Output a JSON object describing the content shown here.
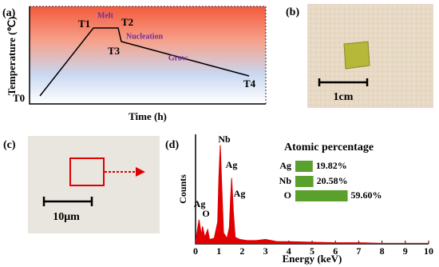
{
  "panel_a": {
    "label": "(a)",
    "x_label": "Time (h)",
    "y_label": "Temperature (℃)",
    "stages": [
      "T0",
      "T1",
      "T2",
      "T3",
      "T4"
    ],
    "phases": [
      "Melt",
      "Nucleation",
      "Grow"
    ]
  },
  "panel_b": {
    "label": "(b)",
    "scale_label": "1cm"
  },
  "panel_c": {
    "label": "(c)",
    "scale_label": "10μm"
  },
  "chart_data": [
    {
      "type": "line",
      "label": "(d)",
      "x_label": "Energy (keV)",
      "y_label": "Counts",
      "color": "#e00000",
      "xlim": [
        0,
        10
      ],
      "xticks": [
        0,
        1,
        2,
        3,
        4,
        5,
        6,
        7,
        8,
        9,
        10
      ],
      "ylim": [
        0,
        100
      ],
      "x": [
        0,
        0.15,
        0.25,
        0.3,
        0.4,
        0.52,
        0.6,
        0.8,
        0.95,
        1.0,
        1.06,
        1.12,
        1.2,
        1.35,
        1.45,
        1.5,
        1.55,
        1.62,
        1.7,
        1.9,
        2.2,
        2.6,
        3.0,
        3.5,
        4,
        5,
        6,
        7,
        8,
        9,
        10
      ],
      "values": [
        2,
        22,
        8,
        16,
        6,
        13,
        4,
        5,
        20,
        60,
        90,
        55,
        10,
        5,
        15,
        40,
        60,
        30,
        6,
        4,
        3,
        3,
        4,
        2,
        2,
        1.5,
        1,
        1,
        0.5,
        0.5,
        0.5
      ],
      "peak_labels": [
        "Nb",
        "Ag",
        "Ag",
        "Ag",
        "O"
      ]
    },
    {
      "type": "bar",
      "title": "Atomic percentage",
      "categories": [
        "Ag",
        "Nb",
        "O"
      ],
      "values": [
        19.82,
        20.58,
        59.6
      ],
      "value_labels": [
        "19.82%",
        "20.58%",
        "59.60%"
      ],
      "color": "#5aa02c"
    }
  ]
}
